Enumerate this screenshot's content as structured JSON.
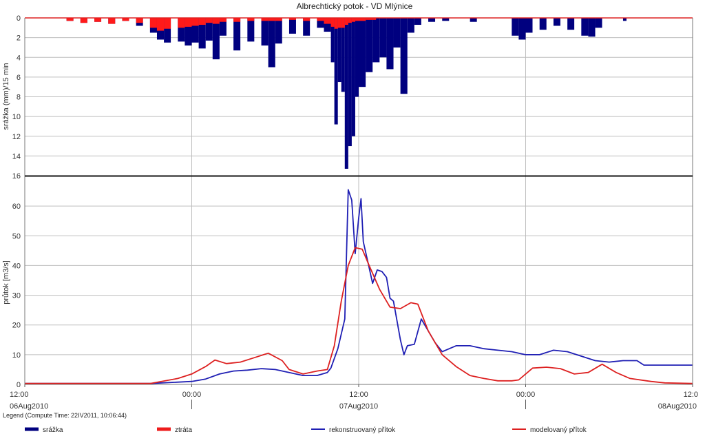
{
  "chart_data": {
    "title": "Albrechtický potok - VD Mlýnice",
    "x_axis": {
      "time_labels": [
        "12:00",
        "00:00",
        "12:00",
        "00:00",
        "12:0"
      ],
      "date_labels": [
        "06Aug2010",
        "07Aug2010",
        "08Aug2010"
      ]
    },
    "panels": [
      {
        "type": "bar",
        "orientation": "inverted",
        "ylabel": "srážka (mm)/15 min",
        "ylim": [
          0,
          16
        ],
        "yticks": [
          0,
          2,
          4,
          6,
          8,
          10,
          12,
          14,
          16
        ],
        "series": [
          {
            "name": "srážka",
            "color": "#00007f",
            "points": [
              [
                "06Aug2010 15:00",
                0.3
              ],
              [
                "06Aug2010 16:00",
                0.5
              ],
              [
                "06Aug2010 17:00",
                0.4
              ],
              [
                "06Aug2010 18:00",
                0.6
              ],
              [
                "06Aug2010 19:00",
                0.3
              ],
              [
                "06Aug2010 20:00",
                0.8
              ],
              [
                "06Aug2010 21:00",
                1.5
              ],
              [
                "06Aug2010 21:30",
                2.2
              ],
              [
                "06Aug2010 22:00",
                2.5
              ],
              [
                "06Aug2010 23:00",
                2.4
              ],
              [
                "06Aug2010 23:30",
                2.8
              ],
              [
                "07Aug2010 00:00",
                2.5
              ],
              [
                "07Aug2010 00:30",
                3.1
              ],
              [
                "07Aug2010 01:00",
                2.3
              ],
              [
                "07Aug2010 01:30",
                4.2
              ],
              [
                "07Aug2010 02:00",
                1.8
              ],
              [
                "07Aug2010 03:00",
                3.3
              ],
              [
                "07Aug2010 04:00",
                2.4
              ],
              [
                "07Aug2010 05:00",
                2.8
              ],
              [
                "07Aug2010 05:30",
                5.0
              ],
              [
                "07Aug2010 06:00",
                2.6
              ],
              [
                "07Aug2010 07:00",
                1.6
              ],
              [
                "07Aug2010 08:00",
                1.8
              ],
              [
                "07Aug2010 09:00",
                1.0
              ],
              [
                "07Aug2010 09:30",
                1.4
              ],
              [
                "07Aug2010 10:00",
                4.5
              ],
              [
                "07Aug2010 10:15",
                10.8
              ],
              [
                "07Aug2010 10:30",
                6.5
              ],
              [
                "07Aug2010 10:45",
                7.5
              ],
              [
                "07Aug2010 11:00",
                15.3
              ],
              [
                "07Aug2010 11:15",
                13.0
              ],
              [
                "07Aug2010 11:30",
                12.0
              ],
              [
                "07Aug2010 11:45",
                8.0
              ],
              [
                "07Aug2010 12:00",
                7.0
              ],
              [
                "07Aug2010 12:30",
                5.5
              ],
              [
                "07Aug2010 13:00",
                4.5
              ],
              [
                "07Aug2010 13:30",
                4.0
              ],
              [
                "07Aug2010 14:00",
                5.2
              ],
              [
                "07Aug2010 14:30",
                3.0
              ],
              [
                "07Aug2010 15:00",
                7.7
              ],
              [
                "07Aug2010 15:30",
                1.5
              ],
              [
                "07Aug2010 16:00",
                0.7
              ],
              [
                "07Aug2010 17:00",
                0.4
              ],
              [
                "07Aug2010 18:00",
                0.3
              ],
              [
                "07Aug2010 20:00",
                0.4
              ],
              [
                "07Aug2010 23:00",
                1.8
              ],
              [
                "07Aug2010 23:30",
                2.2
              ],
              [
                "08Aug2010 00:00",
                1.5
              ],
              [
                "08Aug2010 01:00",
                1.2
              ],
              [
                "08Aug2010 02:00",
                0.8
              ],
              [
                "08Aug2010 03:00",
                1.2
              ],
              [
                "08Aug2010 04:00",
                1.8
              ],
              [
                "08Aug2010 04:30",
                1.9
              ],
              [
                "08Aug2010 05:00",
                1.0
              ],
              [
                "08Aug2010 07:00",
                0.3
              ]
            ]
          },
          {
            "name": "ztráta",
            "color": "#ff1a1a",
            "points": [
              [
                "06Aug2010 15:00",
                0.3
              ],
              [
                "06Aug2010 16:00",
                0.5
              ],
              [
                "06Aug2010 17:00",
                0.4
              ],
              [
                "06Aug2010 18:00",
                0.6
              ],
              [
                "06Aug2010 19:00",
                0.3
              ],
              [
                "06Aug2010 20:00",
                0.5
              ],
              [
                "06Aug2010 21:00",
                1.0
              ],
              [
                "06Aug2010 21:30",
                1.3
              ],
              [
                "06Aug2010 22:00",
                1.1
              ],
              [
                "06Aug2010 23:00",
                1.0
              ],
              [
                "06Aug2010 23:30",
                0.9
              ],
              [
                "07Aug2010 00:00",
                0.8
              ],
              [
                "07Aug2010 00:30",
                0.7
              ],
              [
                "07Aug2010 01:00",
                0.5
              ],
              [
                "07Aug2010 01:30",
                0.6
              ],
              [
                "07Aug2010 02:00",
                0.4
              ],
              [
                "07Aug2010 03:00",
                0.4
              ],
              [
                "07Aug2010 04:00",
                0.3
              ],
              [
                "07Aug2010 05:00",
                0.3
              ],
              [
                "07Aug2010 05:30",
                0.3
              ],
              [
                "07Aug2010 06:00",
                0.3
              ],
              [
                "07Aug2010 07:00",
                0.2
              ],
              [
                "07Aug2010 08:00",
                0.3
              ],
              [
                "07Aug2010 09:00",
                0.3
              ],
              [
                "07Aug2010 09:30",
                0.6
              ],
              [
                "07Aug2010 10:00",
                0.9
              ],
              [
                "07Aug2010 10:15",
                1.1
              ],
              [
                "07Aug2010 10:30",
                1.0
              ],
              [
                "07Aug2010 10:45",
                1.0
              ],
              [
                "07Aug2010 11:00",
                0.7
              ],
              [
                "07Aug2010 11:15",
                0.5
              ],
              [
                "07Aug2010 11:30",
                0.4
              ],
              [
                "07Aug2010 11:45",
                0.3
              ],
              [
                "07Aug2010 12:00",
                0.3
              ],
              [
                "07Aug2010 12:30",
                0.2
              ],
              [
                "07Aug2010 13:00",
                0.2
              ]
            ]
          }
        ]
      },
      {
        "type": "line",
        "ylabel": "průtok [m3/s]",
        "ylim": [
          0,
          70
        ],
        "yticks": [
          0,
          10,
          20,
          30,
          40,
          50,
          60
        ],
        "series": [
          {
            "name": "rekonstruovaný přítok",
            "color": "#1f1fb4",
            "points": [
              [
                "06Aug2010 12:00",
                0.3
              ],
              [
                "06Aug2010 21:00",
                0.3
              ],
              [
                "07Aug2010 00:00",
                1.0
              ],
              [
                "07Aug2010 01:00",
                1.8
              ],
              [
                "07Aug2010 02:00",
                3.5
              ],
              [
                "07Aug2010 03:00",
                4.5
              ],
              [
                "07Aug2010 04:00",
                4.8
              ],
              [
                "07Aug2010 05:00",
                5.3
              ],
              [
                "07Aug2010 06:00",
                5.0
              ],
              [
                "07Aug2010 07:00",
                4.0
              ],
              [
                "07Aug2010 08:00",
                3.0
              ],
              [
                "07Aug2010 09:00",
                3.0
              ],
              [
                "07Aug2010 09:45",
                4.0
              ],
              [
                "07Aug2010 10:00",
                5.5
              ],
              [
                "07Aug2010 10:30",
                12.0
              ],
              [
                "07Aug2010 11:00",
                22.0
              ],
              [
                "07Aug2010 11:15",
                65.5
              ],
              [
                "07Aug2010 11:30",
                62.0
              ],
              [
                "07Aug2010 11:45",
                44.0
              ],
              [
                "07Aug2010 12:00",
                56.0
              ],
              [
                "07Aug2010 12:10",
                62.5
              ],
              [
                "07Aug2010 12:20",
                48.0
              ],
              [
                "07Aug2010 12:40",
                41.0
              ],
              [
                "07Aug2010 13:00",
                34.0
              ],
              [
                "07Aug2010 13:20",
                38.5
              ],
              [
                "07Aug2010 13:40",
                38.0
              ],
              [
                "07Aug2010 14:00",
                36.0
              ],
              [
                "07Aug2010 14:15",
                29.0
              ],
              [
                "07Aug2010 14:30",
                28.0
              ],
              [
                "07Aug2010 15:00",
                15.0
              ],
              [
                "07Aug2010 15:15",
                10.0
              ],
              [
                "07Aug2010 15:30",
                13.0
              ],
              [
                "07Aug2010 16:00",
                13.5
              ],
              [
                "07Aug2010 16:30",
                22.0
              ],
              [
                "07Aug2010 17:00",
                18.0
              ],
              [
                "07Aug2010 17:30",
                14.0
              ],
              [
                "07Aug2010 18:00",
                11.0
              ],
              [
                "07Aug2010 19:00",
                13.0
              ],
              [
                "07Aug2010 20:00",
                13.0
              ],
              [
                "07Aug2010 21:00",
                12.0
              ],
              [
                "07Aug2010 22:00",
                11.5
              ],
              [
                "07Aug2010 23:00",
                11.0
              ],
              [
                "08Aug2010 00:00",
                10.0
              ],
              [
                "08Aug2010 01:00",
                10.0
              ],
              [
                "08Aug2010 02:00",
                11.5
              ],
              [
                "08Aug2010 03:00",
                11.0
              ],
              [
                "08Aug2010 04:00",
                9.5
              ],
              [
                "08Aug2010 05:00",
                8.0
              ],
              [
                "08Aug2010 06:00",
                7.5
              ],
              [
                "08Aug2010 07:00",
                8.0
              ],
              [
                "08Aug2010 08:00",
                8.0
              ],
              [
                "08Aug2010 08:30",
                6.5
              ],
              [
                "08Aug2010 12:00",
                6.5
              ]
            ]
          },
          {
            "name": "modelovaný přítok",
            "color": "#dd2020",
            "points": [
              [
                "06Aug2010 12:00",
                0.3
              ],
              [
                "06Aug2010 21:00",
                0.3
              ],
              [
                "06Aug2010 23:00",
                2.0
              ],
              [
                "07Aug2010 00:00",
                3.5
              ],
              [
                "07Aug2010 01:00",
                6.0
              ],
              [
                "07Aug2010 01:40",
                8.2
              ],
              [
                "07Aug2010 02:30",
                7.0
              ],
              [
                "07Aug2010 03:30",
                7.5
              ],
              [
                "07Aug2010 04:30",
                9.0
              ],
              [
                "07Aug2010 05:30",
                10.5
              ],
              [
                "07Aug2010 06:30",
                8.0
              ],
              [
                "07Aug2010 07:00",
                5.0
              ],
              [
                "07Aug2010 08:00",
                3.5
              ],
              [
                "07Aug2010 09:00",
                4.5
              ],
              [
                "07Aug2010 09:45",
                5.0
              ],
              [
                "07Aug2010 10:15",
                13.0
              ],
              [
                "07Aug2010 10:45",
                28.0
              ],
              [
                "07Aug2010 11:15",
                40.0
              ],
              [
                "07Aug2010 11:45",
                46.0
              ],
              [
                "07Aug2010 12:15",
                45.5
              ],
              [
                "07Aug2010 12:45",
                40.0
              ],
              [
                "07Aug2010 13:30",
                32.0
              ],
              [
                "07Aug2010 14:15",
                26.0
              ],
              [
                "07Aug2010 15:00",
                25.5
              ],
              [
                "07Aug2010 15:45",
                27.5
              ],
              [
                "07Aug2010 16:15",
                27.0
              ],
              [
                "07Aug2010 17:00",
                18.0
              ],
              [
                "07Aug2010 18:00",
                10.0
              ],
              [
                "07Aug2010 19:00",
                6.0
              ],
              [
                "07Aug2010 20:00",
                3.0
              ],
              [
                "07Aug2010 21:00",
                2.0
              ],
              [
                "07Aug2010 22:00",
                1.2
              ],
              [
                "07Aug2010 23:00",
                1.2
              ],
              [
                "07Aug2010 23:30",
                1.5
              ],
              [
                "08Aug2010 00:30",
                5.5
              ],
              [
                "08Aug2010 01:30",
                5.8
              ],
              [
                "08Aug2010 02:30",
                5.3
              ],
              [
                "08Aug2010 03:30",
                3.5
              ],
              [
                "08Aug2010 04:30",
                4.0
              ],
              [
                "08Aug2010 05:30",
                6.8
              ],
              [
                "08Aug2010 06:30",
                4.0
              ],
              [
                "08Aug2010 07:30",
                2.0
              ],
              [
                "08Aug2010 09:00",
                1.0
              ],
              [
                "08Aug2010 10:00",
                0.5
              ],
              [
                "08Aug2010 12:00",
                0.3
              ]
            ]
          }
        ]
      }
    ],
    "legend": {
      "caption": "Legend (Compute Time: 22IV2011, 10:06:44)",
      "items": [
        {
          "label": "srážka",
          "color": "#00007f"
        },
        {
          "label": "ztráta",
          "color": "#ee1c1c"
        },
        {
          "label": "rekonstruovaný přítok",
          "color": "#1f1fb4"
        },
        {
          "label": "modelovaný přítok",
          "color": "#dd2020"
        }
      ]
    },
    "grid": true
  }
}
